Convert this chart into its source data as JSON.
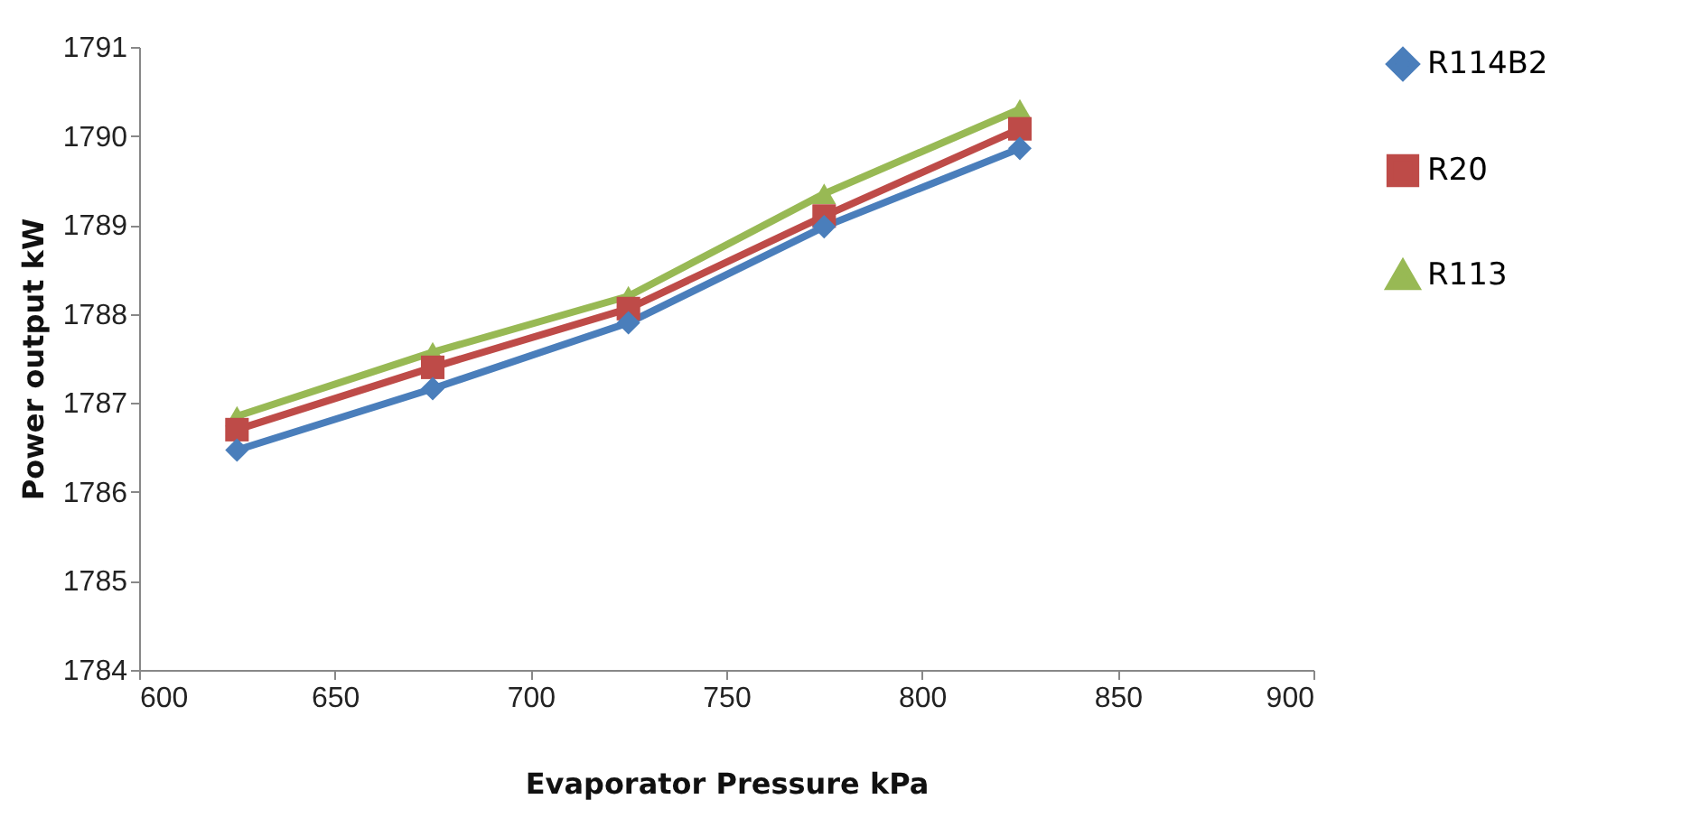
{
  "chart_data": {
    "type": "line",
    "xlabel": "Evaporator  Pressure kPa",
    "ylabel": "Power output kW",
    "x": [
      625,
      675,
      725,
      775,
      825
    ],
    "series": [
      {
        "name": "R114B2",
        "color": "#4a7ebb",
        "marker": "diamond",
        "values": [
          1786.47,
          1787.16,
          1787.9,
          1788.98,
          1789.86
        ]
      },
      {
        "name": "R20",
        "color": "#be4b48",
        "marker": "square",
        "values": [
          1786.7,
          1787.4,
          1788.06,
          1789.1,
          1790.08
        ]
      },
      {
        "name": "R113",
        "color": "#98b954",
        "marker": "triangle",
        "values": [
          1786.85,
          1787.57,
          1788.2,
          1789.35,
          1790.3
        ]
      }
    ],
    "xlim": [
      600,
      900
    ],
    "xticks": [
      600,
      650,
      700,
      750,
      800,
      850,
      900
    ],
    "ylim": [
      1784,
      1791
    ],
    "yticks": [
      1784,
      1785,
      1786,
      1787,
      1788,
      1789,
      1790,
      1791
    ],
    "grid": false,
    "legend": "right",
    "line_style": "solid"
  }
}
